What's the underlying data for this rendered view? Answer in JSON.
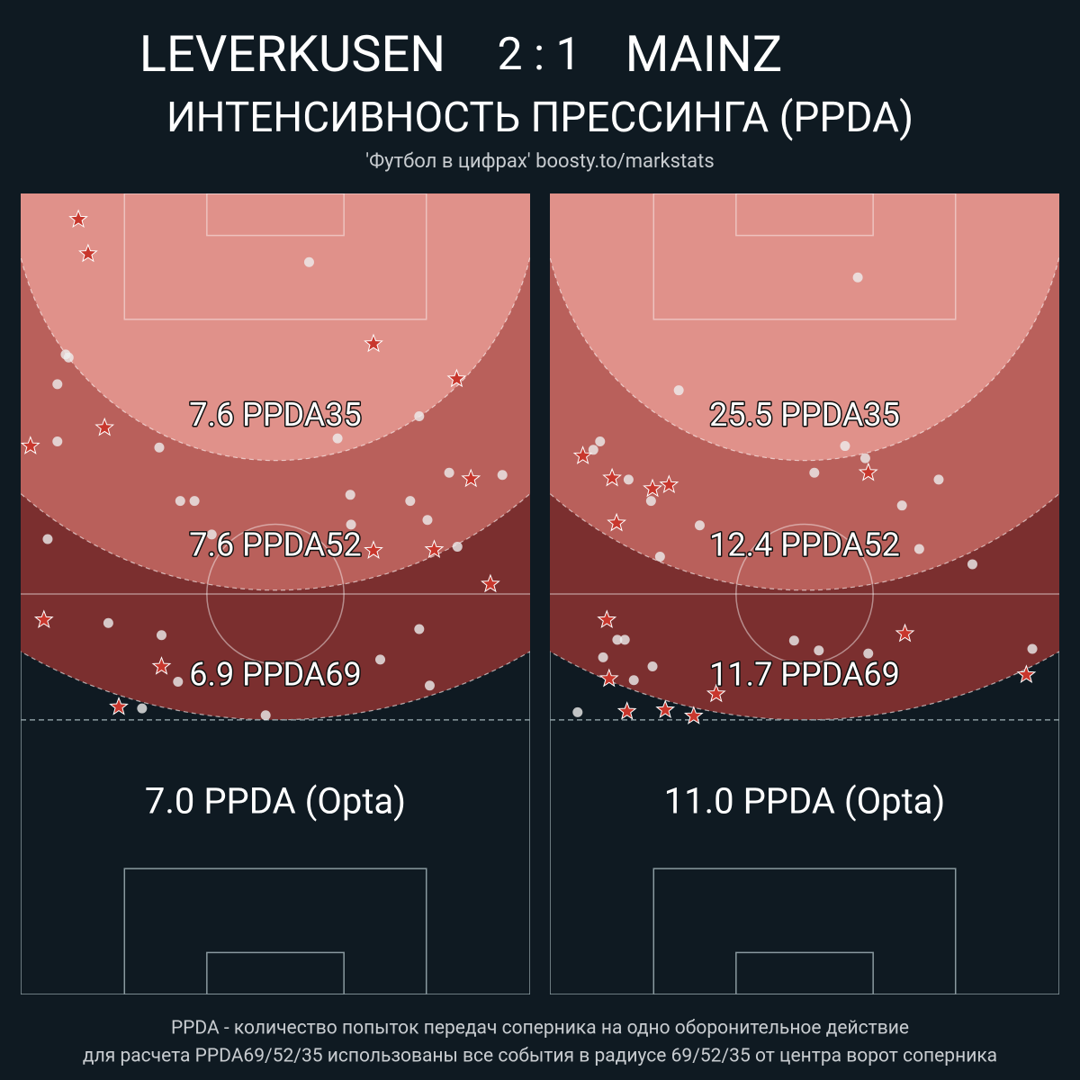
{
  "header": {
    "home": "LEVERKUSEN",
    "score": "2 : 1",
    "away": "MAINZ",
    "subtitle": "ИНТЕНСИВНОСТЬ ПРЕССИНГА (PPDA)",
    "credit": "'Футбол в цифрах' boosty.to/markstats"
  },
  "chart_data": [
    {
      "type": "scatter",
      "xlim": [
        0,
        68
      ],
      "ylim": [
        0,
        105
      ],
      "zones": [
        {
          "radius": 69,
          "color": "#7b2f2f",
          "label": "6.9 PPDA69"
        },
        {
          "radius": 52,
          "color": "#b9605b",
          "label": "7.6 PPDA52"
        },
        {
          "radius": 35,
          "color": "#e0918a",
          "label": "7.6 PPDA35"
        }
      ],
      "note": "7.0 PPDA (Opta)",
      "series": [
        {
          "marker": "star",
          "color": "#c8372d",
          "x": [
            7.7,
            9.0,
            47.1,
            58.2,
            11.2,
            1.3,
            60.1,
            55.2,
            47.1,
            62.7,
            3.1,
            18.8,
            13.1
          ],
          "y": [
            3.4,
            7.9,
            19.7,
            24.3,
            30.7,
            33.1,
            37.4,
            46.7,
            46.8,
            51.2,
            55.9,
            62.0,
            67.3
          ]
        },
        {
          "marker": "circle",
          "color": "#eeeeee",
          "x": [
            38.5,
            6.0,
            6.4,
            4.9,
            4.9,
            18.5,
            42.3,
            53.2,
            57.2,
            64.3,
            21.3,
            23.2,
            44.0,
            52.0,
            3.6,
            25.5,
            44.1,
            54.3,
            58.3,
            11.7,
            18.8,
            53.2,
            48.0,
            21.0,
            54.6,
            16.2,
            32.7
          ],
          "y": [
            9.0,
            21.1,
            21.5,
            25.0,
            32.5,
            33.3,
            32.1,
            29.2,
            36.6,
            36.9,
            40.3,
            40.3,
            39.5,
            40.3,
            45.3,
            44.7,
            43.4,
            42.8,
            46.3,
            56.3,
            57.9,
            57.1,
            61.1,
            64.0,
            64.5,
            67.5,
            68.4
          ]
        }
      ]
    },
    {
      "type": "scatter",
      "xlim": [
        0,
        68
      ],
      "ylim": [
        0,
        105
      ],
      "zones": [
        {
          "radius": 69,
          "color": "#7b2f2f",
          "label": "11.7 PPDA69"
        },
        {
          "radius": 52,
          "color": "#b9605b",
          "label": "12.4 PPDA52"
        },
        {
          "radius": 35,
          "color": "#e0918a",
          "label": "25.5 PPDA35"
        }
      ],
      "note": "11.0 PPDA (Opta)",
      "series": [
        {
          "marker": "star",
          "color": "#c8372d",
          "x": [
            4.4,
            8.3,
            13.7,
            15.9,
            42.5,
            8.9,
            7.6,
            47.4,
            7.9,
            63.6,
            22.2,
            10.3,
            15.4,
            19.2
          ],
          "y": [
            34.4,
            37.3,
            38.7,
            38.2,
            36.6,
            43.2,
            55.9,
            57.7,
            63.6,
            63.1,
            65.6,
            67.9,
            67.7,
            68.5
          ]
        },
        {
          "marker": "circle",
          "color": "#eeeeee",
          "x": [
            41.1,
            17.2,
            6.7,
            5.8,
            39.4,
            42.1,
            35.3,
            51.9,
            10.5,
            13.5,
            47.0,
            20.0,
            49.3,
            14.7,
            56.4,
            9.0,
            10.0,
            7.1,
            13.7,
            11.2,
            32.6,
            35.9,
            42.5,
            64.4,
            3.7
          ],
          "y": [
            11.0,
            25.8,
            32.5,
            33.6,
            33.1,
            34.7,
            36.6,
            37.5,
            37.5,
            40.3,
            40.9,
            43.5,
            46.6,
            47.6,
            48.6,
            58.5,
            58.5,
            60.8,
            62.0,
            63.8,
            58.6,
            59.9,
            60.3,
            59.7,
            68.0
          ]
        }
      ]
    }
  ],
  "footer": {
    "lines": [
      "PPDA - количество попыток передач соперника на одно оборонительное действие",
      "для расчета PPDA69/52/35 использованы все события в радиусе 69/52/35 от центра ворот соперника"
    ]
  }
}
